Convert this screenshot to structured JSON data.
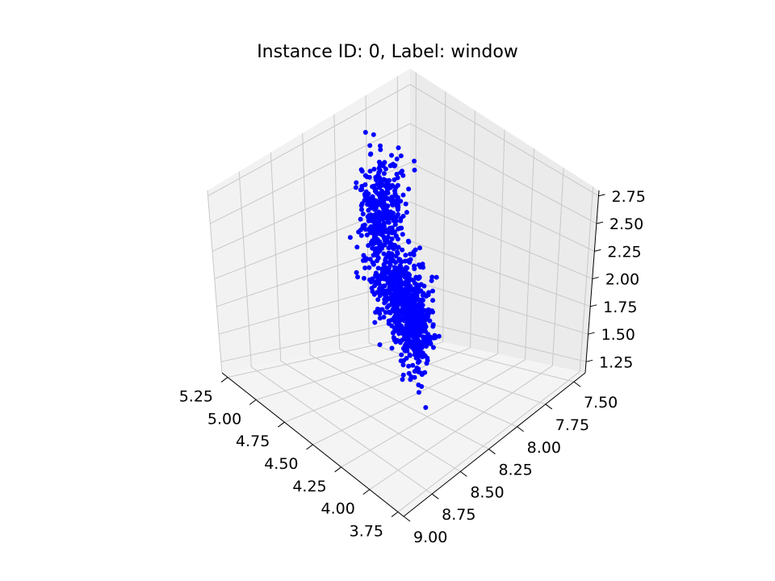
{
  "chart_data": {
    "type": "scatter",
    "projection": "3d",
    "title": "Instance ID: 0, Label: window",
    "xlabel": "",
    "ylabel": "",
    "zlabel": "",
    "grid": true,
    "legend": "none",
    "colors": {
      "points": "#0000ff",
      "pane_left": "#f2f2f2",
      "pane_right": "#ebebeb",
      "pane_floor": "#f4f4f4",
      "grid": "#c8c8c8"
    },
    "xlim": [
      3.7,
      5.3
    ],
    "ylim": [
      7.4,
      9.0
    ],
    "zlim": [
      1.15,
      2.8
    ],
    "x_ticks": [
      "5.25",
      "5.00",
      "4.75",
      "4.50",
      "4.25",
      "4.00",
      "3.75"
    ],
    "y_ticks": [
      "7.50",
      "7.75",
      "8.00",
      "8.25",
      "8.50",
      "8.75",
      "9.00"
    ],
    "z_ticks": [
      "2.75",
      "2.50",
      "2.25",
      "2.00",
      "1.75",
      "1.50",
      "1.25"
    ],
    "x_tick_values": [
      5.25,
      5.0,
      4.75,
      4.5,
      4.25,
      4.0,
      3.75
    ],
    "y_tick_values": [
      7.5,
      7.75,
      8.0,
      8.25,
      8.5,
      8.75,
      9.0
    ],
    "z_tick_values": [
      2.75,
      2.5,
      2.25,
      2.0,
      1.75,
      1.5,
      1.25
    ],
    "series": [
      {
        "clusters": [
          {
            "x": 5.07,
            "y": 7.85,
            "z": 2.05,
            "n": 160,
            "sx": 0.04,
            "sy": 0.08,
            "sz": 0.18
          },
          {
            "x": 4.97,
            "y": 7.95,
            "z": 2.1,
            "n": 130,
            "sx": 0.04,
            "sy": 0.1,
            "sz": 0.16
          },
          {
            "x": 4.85,
            "y": 8.08,
            "z": 1.95,
            "n": 110,
            "sx": 0.04,
            "sy": 0.08,
            "sz": 0.14
          },
          {
            "x": 4.7,
            "y": 8.15,
            "z": 1.7,
            "n": 70,
            "sx": 0.06,
            "sy": 0.06,
            "sz": 0.08
          },
          {
            "x": 4.55,
            "y": 8.25,
            "z": 1.65,
            "n": 70,
            "sx": 0.06,
            "sy": 0.06,
            "sz": 0.1
          },
          {
            "x": 4.4,
            "y": 8.35,
            "z": 1.72,
            "n": 110,
            "sx": 0.06,
            "sy": 0.06,
            "sz": 0.14
          },
          {
            "x": 4.25,
            "y": 8.42,
            "z": 1.62,
            "n": 130,
            "sx": 0.05,
            "sy": 0.06,
            "sz": 0.12
          },
          {
            "x": 4.05,
            "y": 8.55,
            "z": 1.62,
            "n": 220,
            "sx": 0.05,
            "sy": 0.06,
            "sz": 0.16
          },
          {
            "x": 3.92,
            "y": 8.62,
            "z": 1.55,
            "n": 180,
            "sx": 0.04,
            "sy": 0.05,
            "sz": 0.14
          }
        ]
      }
    ]
  }
}
